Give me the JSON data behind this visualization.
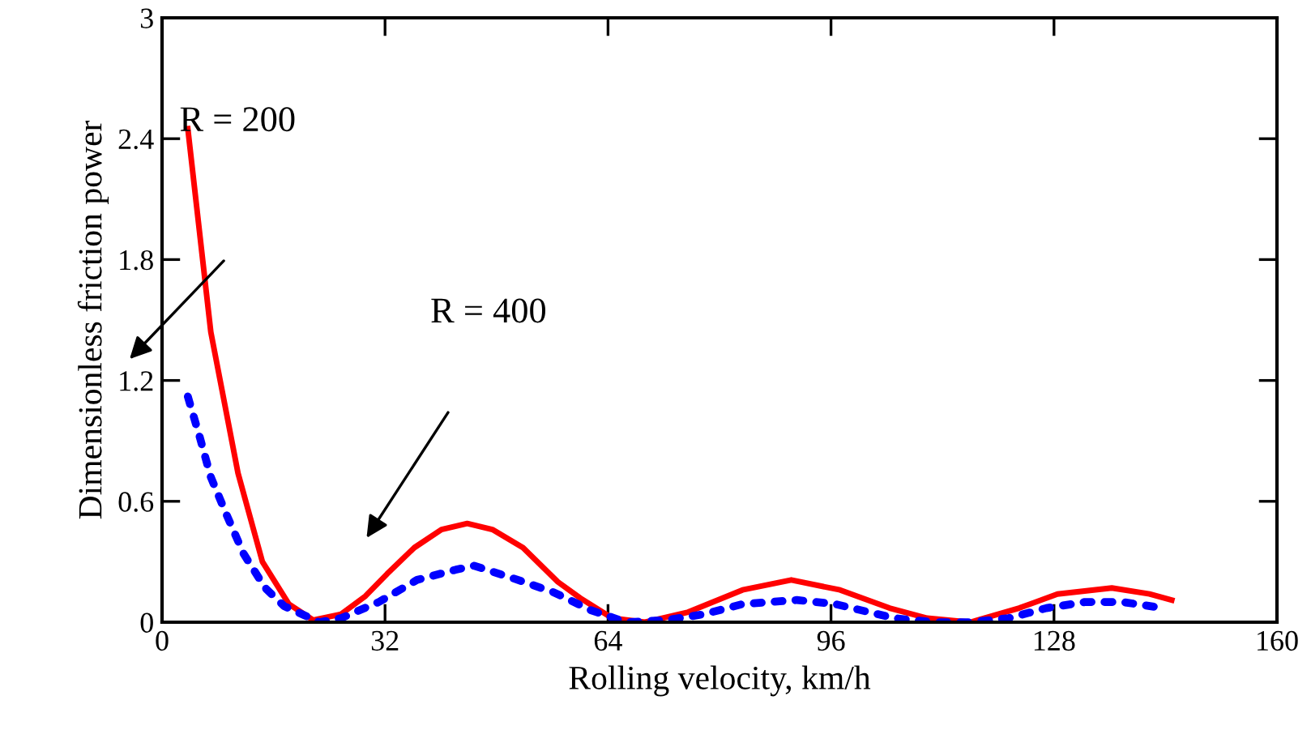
{
  "chart_data": {
    "type": "line",
    "xlabel": "Rolling velocity, km/h",
    "ylabel": "Dimensionless friction power",
    "xlim": [
      0,
      160
    ],
    "xticks": [
      0,
      32,
      64,
      96,
      128,
      160
    ],
    "ylim": [
      0,
      3
    ],
    "yticks": [
      0,
      0.6,
      1.2,
      1.8,
      2.4,
      3
    ],
    "grid": false,
    "legend": false,
    "marker": "none",
    "annotations": [
      "R = 200",
      "R = 400"
    ],
    "series": [
      {
        "color": "#ff0000",
        "line_style": "solid",
        "x": [
          3.7,
          7.0,
          10.9,
          14.4,
          18.2,
          21.7,
          25.7,
          29.2,
          32.3,
          36.2,
          40.1,
          43.8,
          47.4,
          51.8,
          56.8,
          60,
          64.6,
          69.3,
          75.5,
          83.3,
          90.3,
          97.3,
          104.4,
          109.8,
          116,
          123,
          128.5,
          136.3,
          141.7,
          144.9
        ],
        "values": [
          2.45,
          1.44,
          0.74,
          0.3,
          0.09,
          0.01,
          0.04,
          0.13,
          0.24,
          0.37,
          0.46,
          0.49,
          0.46,
          0.37,
          0.2,
          0.12,
          0.02,
          0.0,
          0.05,
          0.16,
          0.21,
          0.16,
          0.07,
          0.02,
          0.0,
          0.07,
          0.14,
          0.17,
          0.14,
          0.11
        ]
      },
      {
        "color": "#0000ff",
        "line_style": "dotted",
        "x": [
          3.7,
          5.4,
          7.0,
          9.3,
          11.7,
          14.8,
          17.5,
          22.6,
          25.7,
          31.1,
          36.6,
          42.1,
          44.8,
          50.2,
          56.1,
          61.5,
          66.6,
          72.4,
          77.8,
          83.3,
          91.1,
          96.6,
          105.1,
          110.6,
          116,
          121.5,
          126.9,
          132.4,
          137.9,
          143.7
        ],
        "values": [
          1.12,
          0.92,
          0.72,
          0.53,
          0.34,
          0.17,
          0.08,
          0.0,
          0.02,
          0.1,
          0.21,
          0.26,
          0.28,
          0.22,
          0.15,
          0.06,
          0.0,
          0.01,
          0.04,
          0.09,
          0.11,
          0.09,
          0.02,
          0.0,
          0.0,
          0.02,
          0.07,
          0.1,
          0.1,
          0.07
        ]
      }
    ]
  }
}
